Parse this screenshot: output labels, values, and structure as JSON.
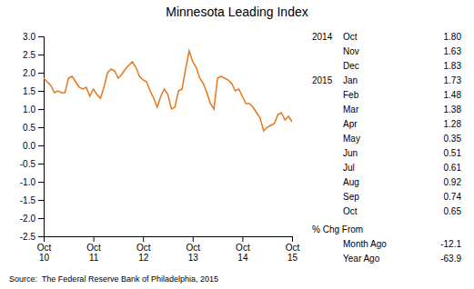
{
  "chart_data": {
    "type": "line",
    "title": "Minnesota Leading Index",
    "source": "Source:  The Federal Reserve Bank of Philadelphia, 2015",
    "color": "#E8761A",
    "grid": false,
    "categories": [
      "Oct\n10",
      null,
      null,
      null,
      null,
      null,
      null,
      null,
      null,
      null,
      null,
      null,
      null,
      null,
      "Oct\n11",
      null,
      null,
      null,
      null,
      null,
      null,
      null,
      null,
      null,
      null,
      null,
      null,
      null,
      "Oct\n12",
      null,
      null,
      null,
      null,
      null,
      null,
      null,
      null,
      null,
      null,
      null,
      null,
      null,
      "Oct\n13",
      null,
      null,
      null,
      null,
      null,
      null,
      null,
      null,
      null,
      null,
      null,
      null,
      null,
      "Oct\n14",
      null,
      null,
      null,
      null,
      null,
      null,
      null,
      null,
      null,
      null,
      null,
      null,
      null,
      "Oct\n15"
    ],
    "values": [
      1.85,
      1.75,
      1.65,
      1.45,
      1.5,
      1.45,
      1.45,
      1.85,
      1.9,
      1.75,
      1.6,
      1.55,
      1.6,
      1.35,
      1.55,
      1.4,
      1.3,
      1.6,
      2.0,
      2.1,
      2.05,
      1.85,
      1.95,
      2.1,
      2.2,
      2.3,
      2.15,
      1.9,
      1.8,
      1.75,
      1.5,
      1.3,
      1.05,
      1.35,
      1.55,
      1.4,
      1.0,
      1.05,
      1.5,
      1.55,
      2.1,
      2.6,
      2.3,
      2.15,
      1.85,
      1.7,
      1.45,
      1.15,
      1.0,
      1.85,
      1.9,
      1.85,
      1.8,
      1.7,
      1.5,
      1.55,
      1.35,
      1.15,
      1.15,
      1.05,
      0.9,
      0.75,
      0.4,
      0.5,
      0.55,
      0.6,
      0.85,
      0.9,
      0.7,
      0.8,
      0.65
    ],
    "ylim": [
      -2.5,
      3.0
    ],
    "yticks": [
      -2.5,
      {
        "value": -2.0,
        "label": "-2.0"
      },
      -1.5,
      {
        "value": -1.0,
        "label": "-1.0"
      },
      -0.5,
      {
        "value": 0.0,
        "label": "0.0"
      },
      0.5,
      {
        "value": 1.0,
        "label": "1.0"
      },
      1.5,
      {
        "value": 2.0,
        "label": "2.0"
      },
      2.5,
      {
        "value": 3.0,
        "label": "3.0"
      }
    ],
    "table": [
      {
        "year": "2014",
        "month": "Oct",
        "value": "1.80"
      },
      {
        "year": null,
        "month": "Nov",
        "value": "1.63"
      },
      {
        "year": null,
        "month": "Dec",
        "value": "1.83"
      },
      {
        "year": "2015",
        "month": "Jan",
        "value": "1.73"
      },
      {
        "year": null,
        "month": "Feb",
        "value": "1.48"
      },
      {
        "year": null,
        "month": "Mar",
        "value": "1.38"
      },
      {
        "year": null,
        "month": "Apr",
        "value": "1.28"
      },
      {
        "year": null,
        "month": "May",
        "value": "0.35"
      },
      {
        "year": null,
        "month": "Jun",
        "value": "0.51"
      },
      {
        "year": null,
        "month": "Jul",
        "value": "0.61"
      },
      {
        "year": null,
        "month": "Aug",
        "value": "0.92"
      },
      {
        "year": null,
        "month": "Sep",
        "value": "0.74"
      },
      {
        "year": null,
        "month": "Oct",
        "value": "0.65"
      }
    ],
    "change_title": "% Chg From",
    "changes": [
      {
        "label": "Month Ago",
        "value": "-12.1"
      },
      {
        "label": "Year Ago",
        "value": "-63.9"
      }
    ]
  }
}
